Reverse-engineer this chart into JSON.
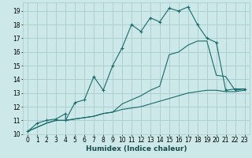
{
  "xlabel": "Humidex (Indice chaleur)",
  "bg_color": "#cce8e8",
  "grid_color": "#aacccc",
  "line_color": "#1a6b6b",
  "xlim": [
    -0.5,
    23.5
  ],
  "ylim": [
    10,
    19.6
  ],
  "xticks": [
    0,
    1,
    2,
    3,
    4,
    5,
    6,
    7,
    8,
    9,
    10,
    11,
    12,
    13,
    14,
    15,
    16,
    17,
    18,
    19,
    20,
    21,
    22,
    23
  ],
  "yticks": [
    10,
    11,
    12,
    13,
    14,
    15,
    16,
    17,
    18,
    19
  ],
  "line1_x": [
    0,
    1,
    2,
    3,
    4,
    4,
    5,
    6,
    7,
    8,
    9,
    10,
    11,
    12,
    13,
    14,
    15,
    16,
    17,
    18,
    19,
    20,
    21,
    22,
    23
  ],
  "line1_y": [
    10.2,
    10.8,
    11.0,
    11.1,
    11.5,
    11.0,
    12.3,
    12.5,
    14.2,
    13.2,
    15.0,
    16.3,
    18.0,
    17.5,
    18.5,
    18.2,
    19.2,
    19.0,
    19.3,
    18.0,
    17.0,
    16.7,
    13.2,
    13.3,
    13.3
  ],
  "line2_x": [
    0,
    1,
    2,
    3,
    4,
    5,
    6,
    7,
    8,
    9,
    10,
    11,
    12,
    13,
    14,
    15,
    16,
    17,
    18,
    19,
    20,
    21,
    22,
    23
  ],
  "line2_y": [
    10.2,
    10.5,
    10.8,
    11.0,
    11.0,
    11.1,
    11.2,
    11.3,
    11.5,
    11.6,
    11.8,
    11.9,
    12.0,
    12.2,
    12.4,
    12.6,
    12.8,
    13.0,
    13.1,
    13.2,
    13.2,
    13.1,
    13.1,
    13.2
  ],
  "line3_x": [
    0,
    1,
    2,
    3,
    4,
    5,
    6,
    7,
    8,
    9,
    10,
    11,
    12,
    13,
    14,
    15,
    16,
    17,
    18,
    19,
    20,
    21,
    22,
    23
  ],
  "line3_y": [
    10.2,
    10.5,
    10.8,
    11.0,
    11.0,
    11.1,
    11.2,
    11.3,
    11.5,
    11.6,
    12.2,
    12.5,
    12.8,
    13.2,
    13.5,
    15.8,
    16.0,
    16.5,
    16.8,
    16.8,
    14.3,
    14.2,
    13.2,
    13.3
  ],
  "tick_fontsize": 5.5,
  "xlabel_fontsize": 6.5
}
